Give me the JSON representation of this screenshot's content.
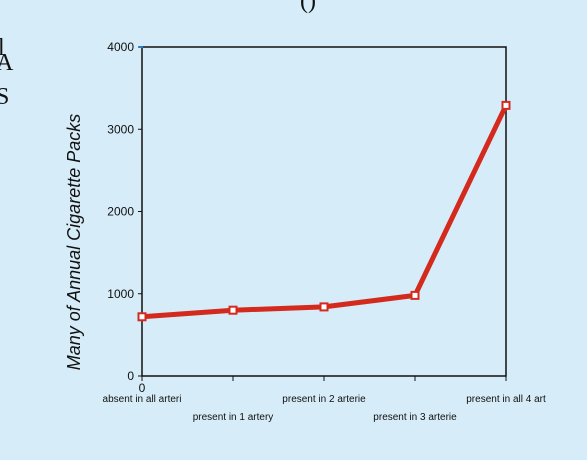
{
  "background_text": {
    "frag_1": "l",
    "frag_2": "A",
    "frag_3": "S",
    "frag_top": "()"
  },
  "colors": {
    "panel": "#d6ecf8",
    "line": "#d42a1e",
    "axis": "#111111",
    "tick_accent": "#1a7fd6"
  },
  "chart_data": {
    "type": "line",
    "title": "",
    "xlabel": "",
    "ylabel": "Many of Annual Cigarette Packs",
    "ylim": [
      0,
      4000
    ],
    "yticks": [
      0,
      1000,
      2000,
      3000,
      4000
    ],
    "x_zero_label": "0",
    "categories": [
      "absent in all arteri",
      "present in 1 artery",
      "present in 2 arterie",
      "present in 3 arterie",
      "present in all 4 art"
    ],
    "series": [
      {
        "values": [
          720,
          800,
          840,
          980,
          3290
        ]
      }
    ],
    "grid": false,
    "legend": "none"
  }
}
